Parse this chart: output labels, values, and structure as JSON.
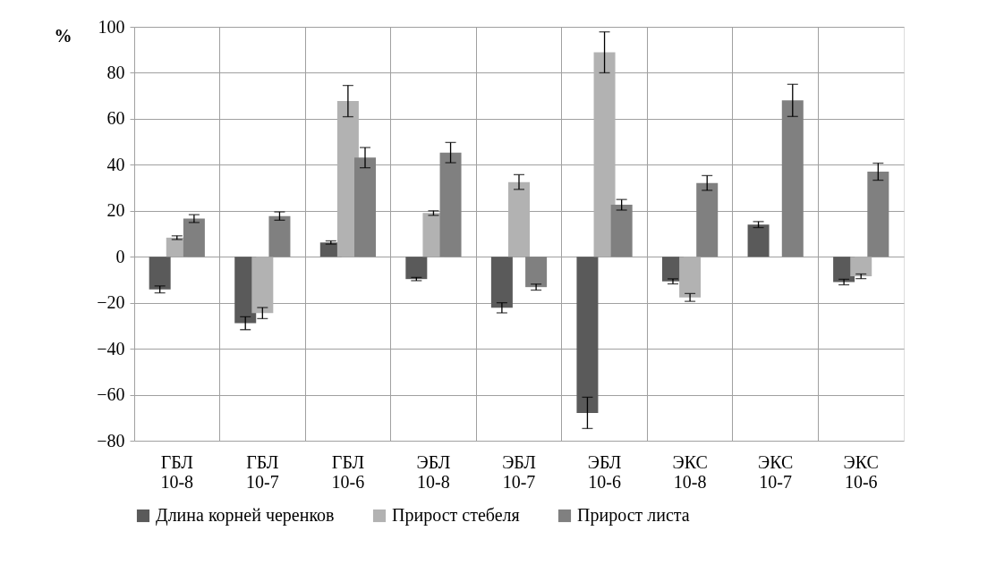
{
  "chart_data": {
    "type": "bar",
    "ylabel": "%",
    "categories": [
      "ГБЛ 10-8",
      "ГБЛ 10-7",
      "ГБЛ 10-6",
      "ЭБЛ 10-8",
      "ЭБЛ 10-7",
      "ЭБЛ 10-6",
      "ЭКС 10-8",
      "ЭКС 10-7",
      "ЭКС 10-6"
    ],
    "series": [
      {
        "name": "Длина корней черенков",
        "color": "#5a5a5a",
        "values": [
          -14.2,
          -28.9,
          6.2,
          -9.7,
          -22.2,
          -67.9,
          -10.7,
          14,
          -11
        ],
        "errors": [
          1.5,
          2.8,
          0.7,
          0.7,
          2.2,
          6.8,
          1.1,
          1.3,
          1.2
        ]
      },
      {
        "name": "Прирост стебеля",
        "color": "#b2b2b2",
        "values": [
          8.3,
          -24.5,
          67.7,
          19,
          32.5,
          88.9,
          -17.7,
          0,
          -8.5
        ],
        "errors": [
          0.8,
          2.4,
          6.8,
          1,
          3.2,
          8.9,
          1.7,
          null,
          1
        ]
      },
      {
        "name": "Прирост листа",
        "color": "#808080",
        "values": [
          16.6,
          17.7,
          43.1,
          45.3,
          -13.2,
          22.6,
          32.1,
          68,
          37
        ],
        "errors": [
          1.7,
          1.8,
          4.4,
          4.4,
          1.3,
          2.3,
          3.2,
          7,
          3.7
        ]
      }
    ],
    "ylim": [
      -80,
      100
    ],
    "yticks": [
      -80,
      -60,
      -40,
      -20,
      0,
      20,
      40,
      60,
      80,
      100
    ],
    "grid": true,
    "legend": "bottom"
  }
}
